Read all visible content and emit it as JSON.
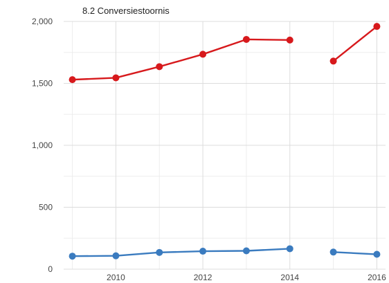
{
  "chart_data": {
    "type": "line",
    "title": "8.2 Conversiestoornis",
    "xlabel": "",
    "ylabel": "",
    "x": [
      2009,
      2010,
      2011,
      2012,
      2013,
      2014,
      2015,
      2016
    ],
    "x_ticks": [
      "2010",
      "2012",
      "2014",
      "2016"
    ],
    "y_ticks": [
      "0",
      "500",
      "1,000",
      "1,500",
      "2,000"
    ],
    "xlim": [
      2008.8,
      2016.2
    ],
    "ylim": [
      0,
      2000
    ],
    "grid": true,
    "legend": "none",
    "series": [
      {
        "color": "#d7191c",
        "values": [
          1530,
          1545,
          1635,
          1735,
          1855,
          1850,
          1680,
          1960
        ],
        "segments": [
          [
            0,
            5
          ],
          [
            6,
            7
          ]
        ]
      },
      {
        "color": "#3a7bbf",
        "values": [
          105,
          108,
          135,
          145,
          148,
          165,
          138,
          120
        ],
        "segments": [
          [
            0,
            5
          ],
          [
            6,
            7
          ]
        ]
      }
    ]
  }
}
